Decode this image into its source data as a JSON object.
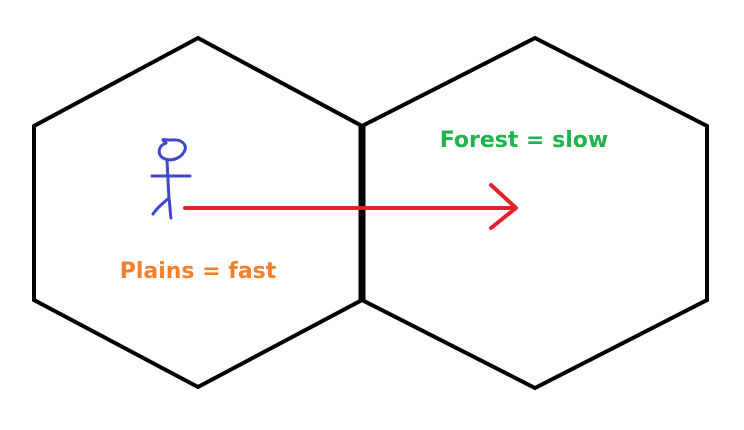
{
  "hexes": [
    {
      "label": "Plains = fast",
      "label_color": "#f4802a"
    },
    {
      "label": "Forest = slow",
      "label_color": "#22b14c"
    }
  ],
  "colors": {
    "outline": "#000000",
    "arrow": "#e8202a",
    "figure": "#3f48cc"
  },
  "icons": [
    "stick-figure-icon",
    "arrow-right-icon"
  ]
}
